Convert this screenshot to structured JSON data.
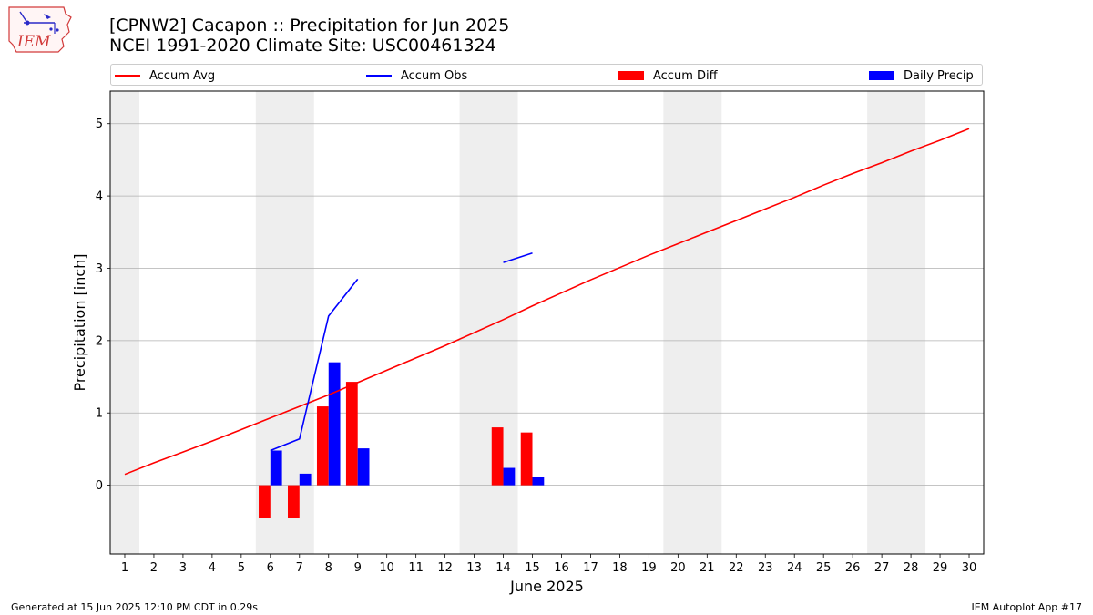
{
  "header": {
    "title_line1": "[CPNW2] Cacapon :: Precipitation for Jun 2025",
    "title_line2": "NCEI 1991-2020 Climate Site: USC00461324",
    "logo_text": "IEM"
  },
  "legend": {
    "items": [
      {
        "label": "Accum Avg",
        "kind": "line",
        "color": "#ff0000"
      },
      {
        "label": "Accum Obs",
        "kind": "line",
        "color": "#0000ff"
      },
      {
        "label": "Accum Diff",
        "kind": "bar",
        "color": "#ff0000"
      },
      {
        "label": "Daily Precip",
        "kind": "bar",
        "color": "#0000ff"
      }
    ]
  },
  "footer": {
    "left": "Generated at 15 Jun 2025 12:10 PM CDT in 0.29s",
    "right": "IEM Autoplot App #17"
  },
  "chart_data": {
    "type": "bar",
    "xlabel": "June 2025",
    "ylabel": "Precipitation [inch]",
    "xlim": [
      0.5,
      30.5
    ],
    "ylim": [
      -0.95,
      5.45
    ],
    "yticks": [
      0,
      1,
      2,
      3,
      4,
      5
    ],
    "grid": "horizontal",
    "legend_position": "top",
    "weekend_shading": [
      [
        0.5,
        1.5
      ],
      [
        5.5,
        7.5
      ],
      [
        12.5,
        14.5
      ],
      [
        19.5,
        21.5
      ],
      [
        26.5,
        28.5
      ]
    ],
    "shading_color": "#eeeeee",
    "categories": [
      "1",
      "2",
      "3",
      "4",
      "5",
      "6",
      "7",
      "8",
      "9",
      "10",
      "11",
      "12",
      "13",
      "14",
      "15",
      "16",
      "17",
      "18",
      "19",
      "20",
      "21",
      "22",
      "23",
      "24",
      "25",
      "26",
      "27",
      "28",
      "29",
      "30"
    ],
    "series": [
      {
        "name": "Accum Avg",
        "kind": "line",
        "color": "#ff0000",
        "x": [
          1,
          2,
          3,
          4,
          5,
          6,
          7,
          8,
          9,
          10,
          11,
          12,
          13,
          14,
          15,
          16,
          17,
          18,
          19,
          20,
          21,
          22,
          23,
          24,
          25,
          26,
          27,
          28,
          29,
          30
        ],
        "values": [
          0.15,
          0.31,
          0.46,
          0.61,
          0.77,
          0.93,
          1.09,
          1.25,
          1.42,
          1.59,
          1.76,
          1.93,
          2.11,
          2.29,
          2.48,
          2.66,
          2.84,
          3.01,
          3.18,
          3.34,
          3.5,
          3.66,
          3.82,
          3.98,
          4.15,
          4.31,
          4.46,
          4.62,
          4.77,
          4.93
        ]
      },
      {
        "name": "Accum Obs",
        "kind": "line",
        "color": "#0000ff",
        "segments": [
          {
            "x": [
              6,
              7,
              8,
              9
            ],
            "values": [
              0.48,
              0.64,
              2.34,
              2.85
            ]
          },
          {
            "x": [
              14,
              15
            ],
            "values": [
              3.08,
              3.21
            ]
          }
        ]
      },
      {
        "name": "Accum Diff",
        "kind": "bar",
        "color": "#ff0000",
        "x": [
          6,
          7,
          8,
          9,
          14,
          15
        ],
        "values": [
          -0.45,
          -0.45,
          1.09,
          1.43,
          0.8,
          0.73
        ]
      },
      {
        "name": "Daily Precip",
        "kind": "bar",
        "color": "#0000ff",
        "x": [
          6,
          7,
          8,
          9,
          14,
          15
        ],
        "values": [
          0.48,
          0.16,
          1.7,
          0.51,
          0.24,
          0.12
        ]
      }
    ]
  }
}
